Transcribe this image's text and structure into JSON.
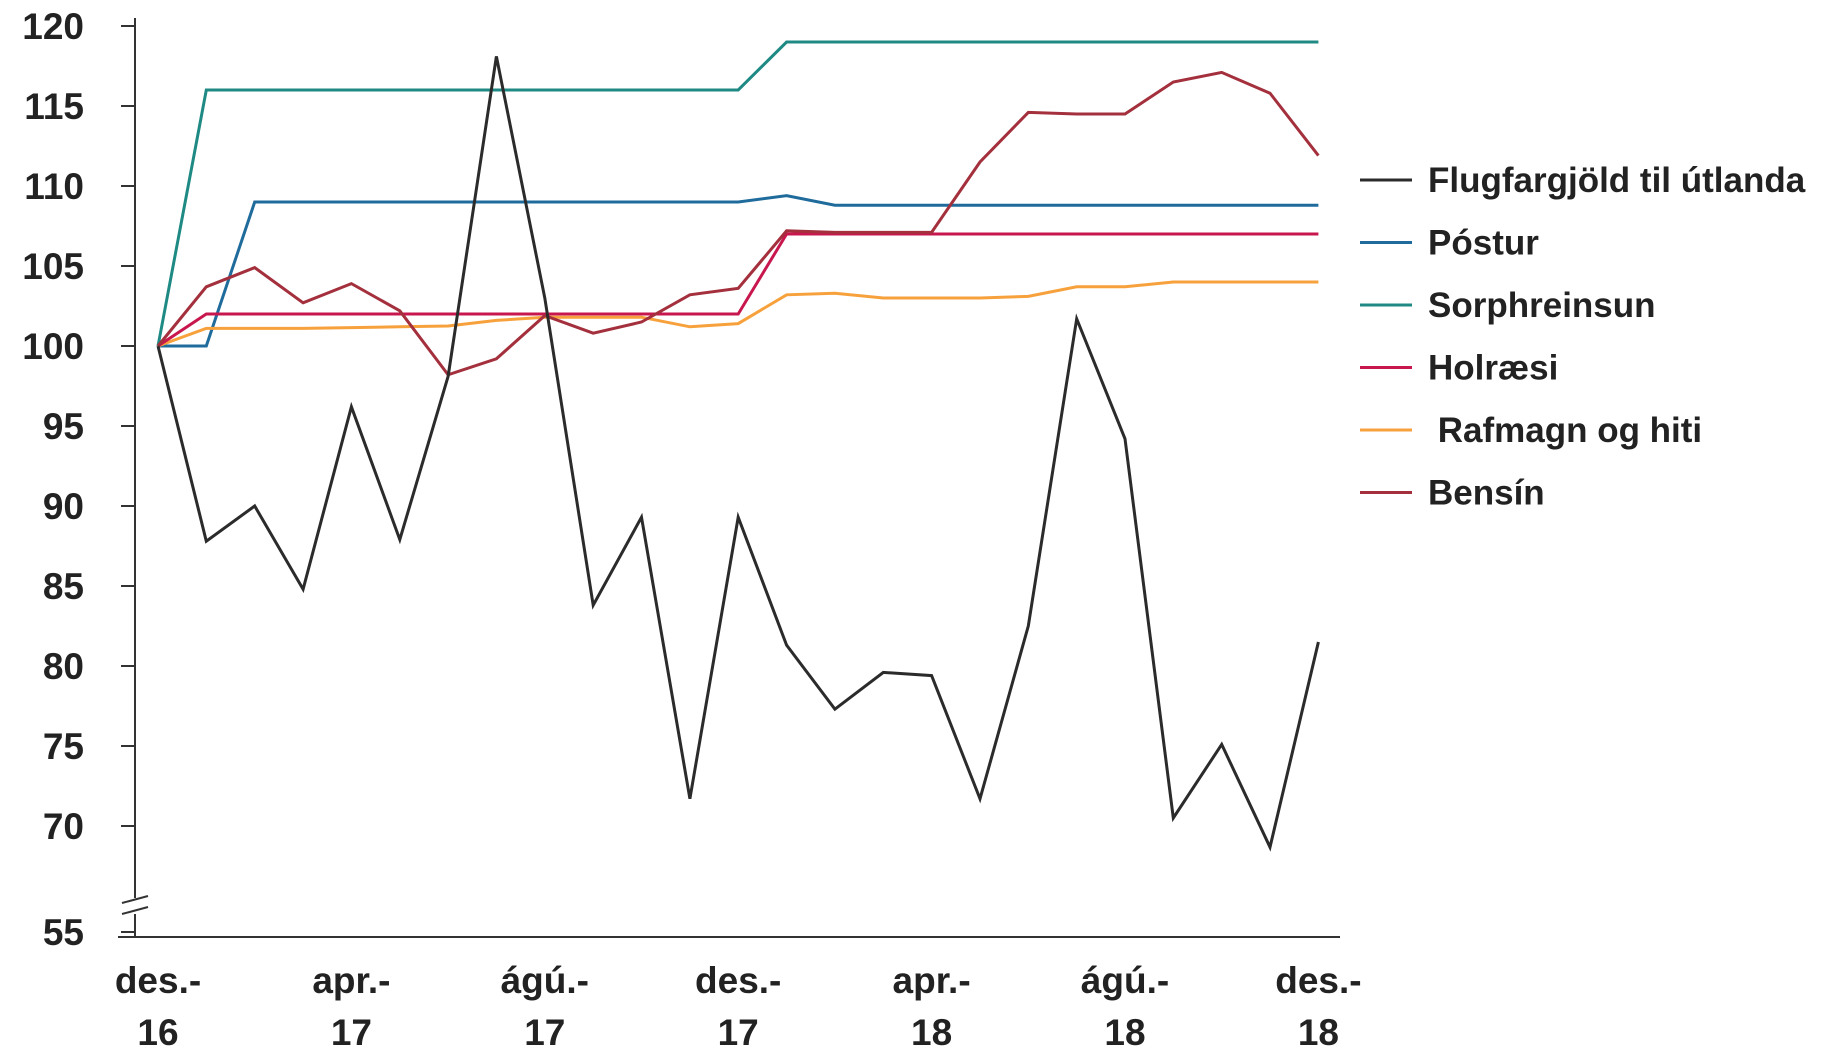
{
  "chart_data": {
    "type": "line",
    "title": "",
    "xlabel": "",
    "ylabel": "",
    "ylim": [
      55,
      120
    ],
    "axis_break": {
      "visible_from": 70,
      "below_jump_to": 55
    },
    "y_ticks": [
      "55",
      "70",
      "75",
      "80",
      "85",
      "90",
      "95",
      "100",
      "105",
      "110",
      "115",
      "120"
    ],
    "x_tick_labels": [
      {
        "index": 0,
        "line1": "des.-",
        "line2": "16"
      },
      {
        "index": 4,
        "line1": "apr.-",
        "line2": "17"
      },
      {
        "index": 8,
        "line1": "ágú.-",
        "line2": "17"
      },
      {
        "index": 12,
        "line1": "des.-",
        "line2": "17"
      },
      {
        "index": 16,
        "line1": "apr.-",
        "line2": "18"
      },
      {
        "index": 20,
        "line1": "ágú.-",
        "line2": "18"
      },
      {
        "index": 24,
        "line1": "des.-",
        "line2": "18"
      }
    ],
    "x_count": 25,
    "grid": false,
    "legend_position": "right",
    "series": [
      {
        "name": "Flugfargjöld til útlanda",
        "color": "#2b2b2b",
        "values": [
          100,
          87.8,
          90,
          84.8,
          96.2,
          87.9,
          98.1,
          118.1,
          103,
          83.8,
          89.3,
          71.7,
          89.3,
          81.3,
          77.3,
          79.6,
          79.4,
          71.7,
          82.5,
          101.7,
          94.2,
          70.5,
          75.1,
          67.0,
          81.5
        ]
      },
      {
        "name": "Póstur",
        "color": "#1f6c9c",
        "values": [
          100,
          100,
          109,
          109,
          109,
          109,
          109,
          109,
          109,
          109,
          109,
          109,
          109,
          109.4,
          108.8,
          108.8,
          108.8,
          108.8,
          108.8,
          108.8,
          108.8,
          108.8,
          108.8,
          108.8,
          108.8
        ]
      },
      {
        "name": "Sorphreinsun",
        "color": "#1f8a84",
        "values": [
          100,
          116,
          116,
          116,
          116,
          116,
          116,
          116,
          116,
          116,
          116,
          116,
          116,
          119,
          119,
          119,
          119,
          119,
          119,
          119,
          119,
          119,
          119,
          119,
          119
        ]
      },
      {
        "name": "Holræsi",
        "color": "#c8174e",
        "values": [
          100,
          102,
          102,
          102,
          102,
          102,
          102,
          102,
          102,
          102,
          102,
          102,
          102,
          107,
          107,
          107,
          107,
          107,
          107,
          107,
          107,
          107,
          107,
          107,
          107
        ]
      },
      {
        "name": " Rafmagn og hiti",
        "color": "#f7a13c",
        "values": [
          100,
          101.1,
          101.1,
          101.1,
          101.15,
          101.2,
          101.25,
          101.6,
          101.8,
          101.8,
          101.8,
          101.2,
          101.4,
          103.2,
          103.3,
          103.0,
          103.0,
          103.0,
          103.1,
          103.7,
          103.7,
          104.0,
          104.0,
          104.0,
          104.0
        ]
      },
      {
        "name": "Bensín",
        "color": "#a3303c",
        "values": [
          100,
          103.7,
          104.9,
          102.7,
          103.9,
          102.2,
          98.2,
          99.2,
          101.9,
          100.8,
          101.5,
          103.2,
          103.6,
          107.2,
          107.1,
          107.1,
          107.1,
          111.5,
          114.6,
          114.5,
          114.5,
          116.5,
          117.1,
          115.8,
          111.9
        ]
      }
    ]
  }
}
